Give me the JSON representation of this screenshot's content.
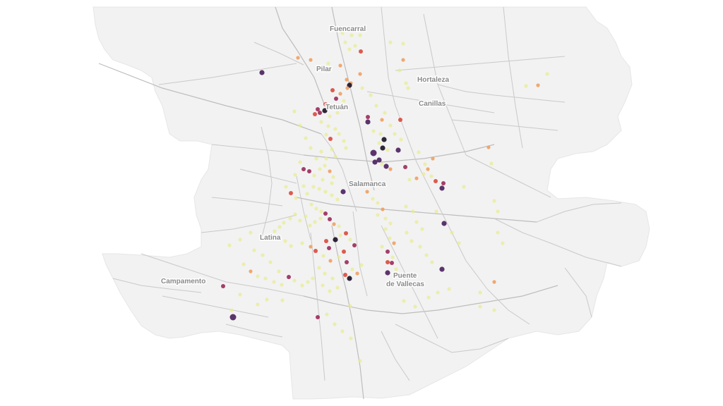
{
  "map": {
    "land_color": "#f2f2f2",
    "road_color": "#c9c9c9",
    "labels": [
      {
        "text": "Fuencarral"
      },
      {
        "text": "Pilar"
      },
      {
        "text": "Hortaleza"
      },
      {
        "text": "Tetuán"
      },
      {
        "text": "Canillas"
      },
      {
        "text": "Salamanca"
      },
      {
        "text": "Latina"
      },
      {
        "text": "Campamento"
      },
      {
        "text": "Puente"
      },
      {
        "text": "de Vallecas"
      }
    ],
    "color_scale": [
      "#e8ec8e",
      "#f0a060",
      "#d94a3c",
      "#9b2a5a",
      "#4a1f5c",
      "#1a1022"
    ]
  }
}
